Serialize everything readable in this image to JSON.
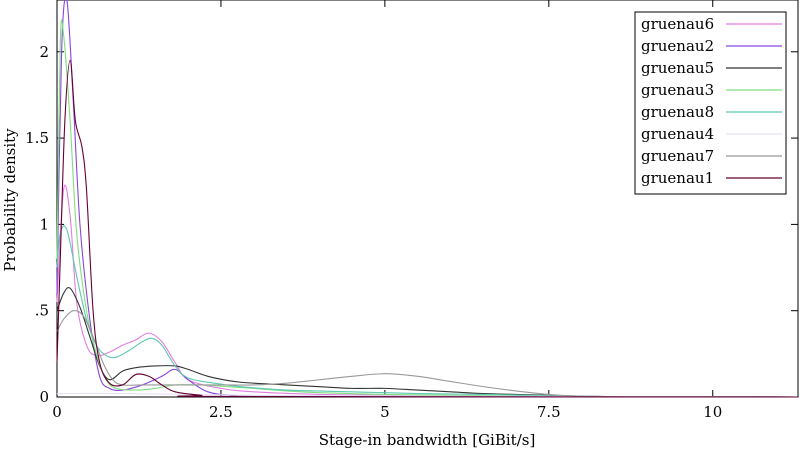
{
  "chart_data": {
    "type": "line",
    "xlabel": "Stage-in bandwidth [GiBit/s]",
    "ylabel": "Probability density",
    "xlim": [
      0,
      11.3
    ],
    "ylim": [
      0,
      2.3
    ],
    "x_ticks": [
      0,
      2.5,
      5,
      7.5,
      10
    ],
    "x_tick_labels": [
      "0",
      "2.5",
      "5",
      "7.5",
      "10"
    ],
    "y_ticks": [
      0,
      0.5,
      1,
      1.5,
      2
    ],
    "y_tick_labels": [
      "0",
      ".5",
      "1",
      "1.5",
      "2"
    ],
    "legend_position": "top-right",
    "grid": false,
    "series": [
      {
        "name": "gruenau6",
        "color": "#e07ee0",
        "points": [
          [
            0,
            0.55
          ],
          [
            0.1,
            1.2
          ],
          [
            0.2,
            1.05
          ],
          [
            0.3,
            0.55
          ],
          [
            0.45,
            0.3
          ],
          [
            0.6,
            0.24
          ],
          [
            0.8,
            0.26
          ],
          [
            1.0,
            0.3
          ],
          [
            1.2,
            0.33
          ],
          [
            1.4,
            0.37
          ],
          [
            1.6,
            0.32
          ],
          [
            1.8,
            0.2
          ],
          [
            2.0,
            0.1
          ],
          [
            2.5,
            0.05
          ],
          [
            3.0,
            0.03
          ],
          [
            4.0,
            0.015
          ],
          [
            5.0,
            0.01
          ],
          [
            6.0,
            0.005
          ],
          [
            7.5,
            0.002
          ],
          [
            11.3,
            0
          ]
        ]
      },
      {
        "name": "gruenau2",
        "color": "#8844dd",
        "points": [
          [
            0,
            0.6
          ],
          [
            0.07,
            2.0
          ],
          [
            0.15,
            2.3
          ],
          [
            0.25,
            1.7
          ],
          [
            0.35,
            1.0
          ],
          [
            0.5,
            0.45
          ],
          [
            0.65,
            0.12
          ],
          [
            0.8,
            0.05
          ],
          [
            1.0,
            0.04
          ],
          [
            1.3,
            0.07
          ],
          [
            1.6,
            0.12
          ],
          [
            1.8,
            0.16
          ],
          [
            2.0,
            0.1
          ],
          [
            2.3,
            0.03
          ],
          [
            2.7,
            0.01
          ],
          [
            3.5,
            0.003
          ],
          [
            11.3,
            0
          ]
        ]
      },
      {
        "name": "gruenau5",
        "color": "#333333",
        "points": [
          [
            0,
            0.5
          ],
          [
            0.1,
            0.6
          ],
          [
            0.2,
            0.63
          ],
          [
            0.35,
            0.52
          ],
          [
            0.5,
            0.35
          ],
          [
            0.65,
            0.18
          ],
          [
            0.8,
            0.1
          ],
          [
            1.0,
            0.15
          ],
          [
            1.2,
            0.17
          ],
          [
            1.5,
            0.18
          ],
          [
            1.8,
            0.18
          ],
          [
            2.0,
            0.16
          ],
          [
            2.3,
            0.12
          ],
          [
            2.7,
            0.09
          ],
          [
            3.0,
            0.08
          ],
          [
            3.5,
            0.07
          ],
          [
            4.0,
            0.06
          ],
          [
            4.5,
            0.05
          ],
          [
            5.0,
            0.05
          ],
          [
            5.5,
            0.04
          ],
          [
            6.0,
            0.03
          ],
          [
            6.5,
            0.02
          ],
          [
            7.0,
            0.015
          ],
          [
            7.5,
            0.01
          ],
          [
            8.0,
            0.005
          ],
          [
            9.0,
            0.001
          ],
          [
            11.3,
            0
          ]
        ]
      },
      {
        "name": "gruenau3",
        "color": "#80dd80",
        "points": [
          [
            0,
            0.8
          ],
          [
            0.05,
            2.05
          ],
          [
            0.1,
            2.1
          ],
          [
            0.2,
            1.6
          ],
          [
            0.3,
            0.95
          ],
          [
            0.45,
            0.5
          ],
          [
            0.6,
            0.25
          ],
          [
            0.75,
            0.1
          ],
          [
            0.9,
            0.05
          ],
          [
            1.2,
            0.04
          ],
          [
            1.5,
            0.05
          ],
          [
            1.8,
            0.07
          ],
          [
            2.2,
            0.07
          ],
          [
            2.6,
            0.06
          ],
          [
            3.0,
            0.05
          ],
          [
            3.5,
            0.035
          ],
          [
            4.0,
            0.025
          ],
          [
            5.0,
            0.015
          ],
          [
            6.0,
            0.01
          ],
          [
            7.0,
            0.006
          ],
          [
            8.0,
            0.002
          ],
          [
            11.3,
            0
          ]
        ]
      },
      {
        "name": "gruenau8",
        "color": "#5cc8b0",
        "points": [
          [
            0,
            0.75
          ],
          [
            0.05,
            0.95
          ],
          [
            0.15,
            0.97
          ],
          [
            0.3,
            0.7
          ],
          [
            0.45,
            0.45
          ],
          [
            0.6,
            0.3
          ],
          [
            0.75,
            0.24
          ],
          [
            0.9,
            0.23
          ],
          [
            1.1,
            0.27
          ],
          [
            1.3,
            0.32
          ],
          [
            1.45,
            0.34
          ],
          [
            1.6,
            0.3
          ],
          [
            1.8,
            0.18
          ],
          [
            2.0,
            0.11
          ],
          [
            2.4,
            0.08
          ],
          [
            2.8,
            0.06
          ],
          [
            3.5,
            0.04
          ],
          [
            4.5,
            0.03
          ],
          [
            5.5,
            0.02
          ],
          [
            6.5,
            0.015
          ],
          [
            7.5,
            0.008
          ],
          [
            8.5,
            0.002
          ],
          [
            11.3,
            0
          ]
        ]
      },
      {
        "name": "gruenau4",
        "color": "#e8e0f8",
        "points": [
          [
            0,
            0.02
          ],
          [
            1.0,
            0.02
          ],
          [
            3.0,
            0.01
          ],
          [
            6.0,
            0.005
          ],
          [
            11.3,
            0
          ]
        ]
      },
      {
        "name": "gruenau7",
        "color": "#999999",
        "points": [
          [
            0,
            0.38
          ],
          [
            0.1,
            0.45
          ],
          [
            0.25,
            0.5
          ],
          [
            0.4,
            0.47
          ],
          [
            0.55,
            0.35
          ],
          [
            0.7,
            0.2
          ],
          [
            0.85,
            0.1
          ],
          [
            1.0,
            0.07
          ],
          [
            1.3,
            0.07
          ],
          [
            1.8,
            0.07
          ],
          [
            2.3,
            0.07
          ],
          [
            3.0,
            0.07
          ],
          [
            3.5,
            0.08
          ],
          [
            4.0,
            0.1
          ],
          [
            4.5,
            0.12
          ],
          [
            5.0,
            0.135
          ],
          [
            5.5,
            0.12
          ],
          [
            6.0,
            0.09
          ],
          [
            6.5,
            0.06
          ],
          [
            7.0,
            0.035
          ],
          [
            7.5,
            0.015
          ],
          [
            8.0,
            0.005
          ],
          [
            9.0,
            0.001
          ],
          [
            11.3,
            0
          ]
        ]
      },
      {
        "name": "gruenau1",
        "color": "#660033",
        "points": [
          [
            0,
            0.2
          ],
          [
            0.05,
            0.8
          ],
          [
            0.12,
            1.6
          ],
          [
            0.2,
            1.95
          ],
          [
            0.28,
            1.6
          ],
          [
            0.38,
            1.45
          ],
          [
            0.45,
            1.2
          ],
          [
            0.55,
            0.5
          ],
          [
            0.65,
            0.2
          ],
          [
            0.8,
            0.08
          ],
          [
            1.0,
            0.07
          ],
          [
            1.2,
            0.13
          ],
          [
            1.4,
            0.12
          ],
          [
            1.6,
            0.07
          ],
          [
            1.8,
            0.03
          ],
          [
            2.2,
            0.01
          ],
          [
            2.6,
            0.003
          ],
          [
            11.3,
            0
          ]
        ]
      }
    ]
  }
}
